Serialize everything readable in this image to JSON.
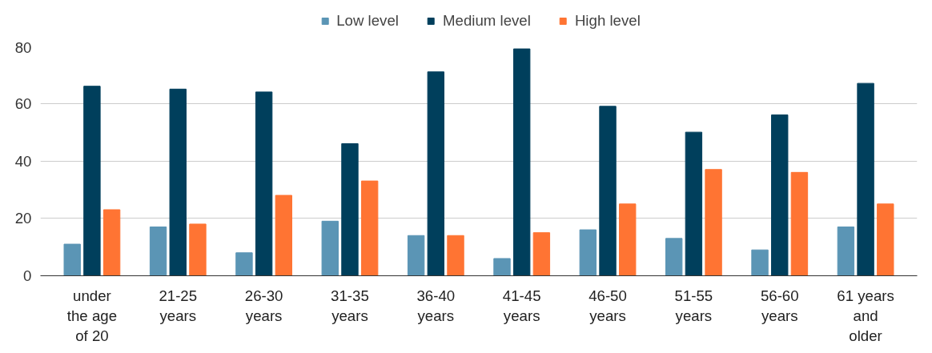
{
  "chart_data": {
    "type": "bar",
    "categories": [
      "under the age of 20",
      "21-25 years",
      "26-30 years",
      "31-35 years",
      "36-40 years",
      "41-45 years",
      "46-50 years",
      "51-55 years",
      "56-60 years",
      "61 years and older"
    ],
    "series": [
      {
        "name": "Low level",
        "color": "#5b95b5",
        "values": [
          11,
          17,
          8,
          19,
          14,
          6,
          16,
          13,
          9,
          17
        ]
      },
      {
        "name": "Medium level",
        "color": "#003f5c",
        "values": [
          66,
          65,
          64,
          46,
          71,
          79,
          59,
          50,
          56,
          67
        ]
      },
      {
        "name": "High level",
        "color": "#ff7433",
        "values": [
          23,
          18,
          28,
          33,
          14,
          15,
          25,
          37,
          36,
          25
        ]
      }
    ],
    "ylim": [
      0,
      80
    ],
    "yticks": [
      0,
      20,
      40,
      60,
      80
    ],
    "grid": "y",
    "legend": "top"
  }
}
